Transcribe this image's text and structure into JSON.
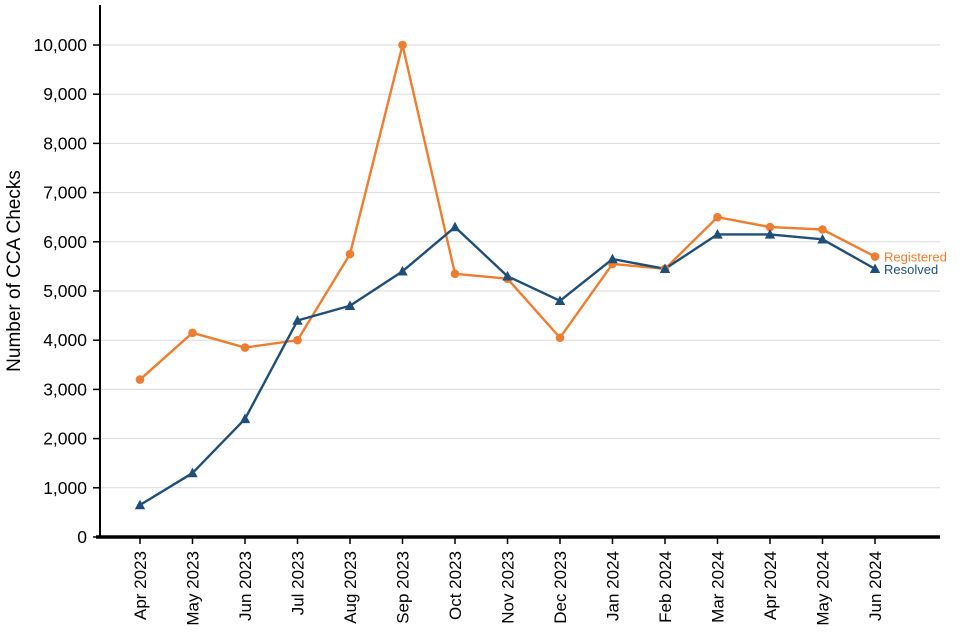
{
  "page": {
    "background": "#ffffff"
  },
  "chart_data": {
    "type": "line",
    "title": "",
    "xlabel": "",
    "ylabel": "Number of CCA Checks",
    "categories": [
      "Apr 2023",
      "May 2023",
      "Jun 2023",
      "Jul 2023",
      "Aug 2023",
      "Sep 2023",
      "Oct 2023",
      "Nov 2023",
      "Dec 2023",
      "Jan 2024",
      "Feb 2024",
      "Mar 2024",
      "Apr 2024",
      "May 2024",
      "Jun 2024"
    ],
    "series": [
      {
        "name": "Registered",
        "color": "#ED7D31",
        "marker": "circle",
        "values": [
          3200,
          4150,
          3850,
          4000,
          5750,
          10000,
          5350,
          5250,
          4050,
          5550,
          5450,
          6500,
          6300,
          6250,
          5700
        ]
      },
      {
        "name": "Resolved",
        "color": "#1F4E79",
        "marker": "triangle",
        "values": [
          650,
          1300,
          2400,
          4400,
          4700,
          5400,
          6300,
          5300,
          4800,
          5650,
          5450,
          6150,
          6150,
          6050,
          5450
        ]
      }
    ],
    "ylim": [
      0,
      10000
    ],
    "ytick_step": 1000,
    "grid": true,
    "gridline_color": "#d9d9d9",
    "axis_color": "#000000",
    "legend_position": "end-of-line-labels"
  }
}
